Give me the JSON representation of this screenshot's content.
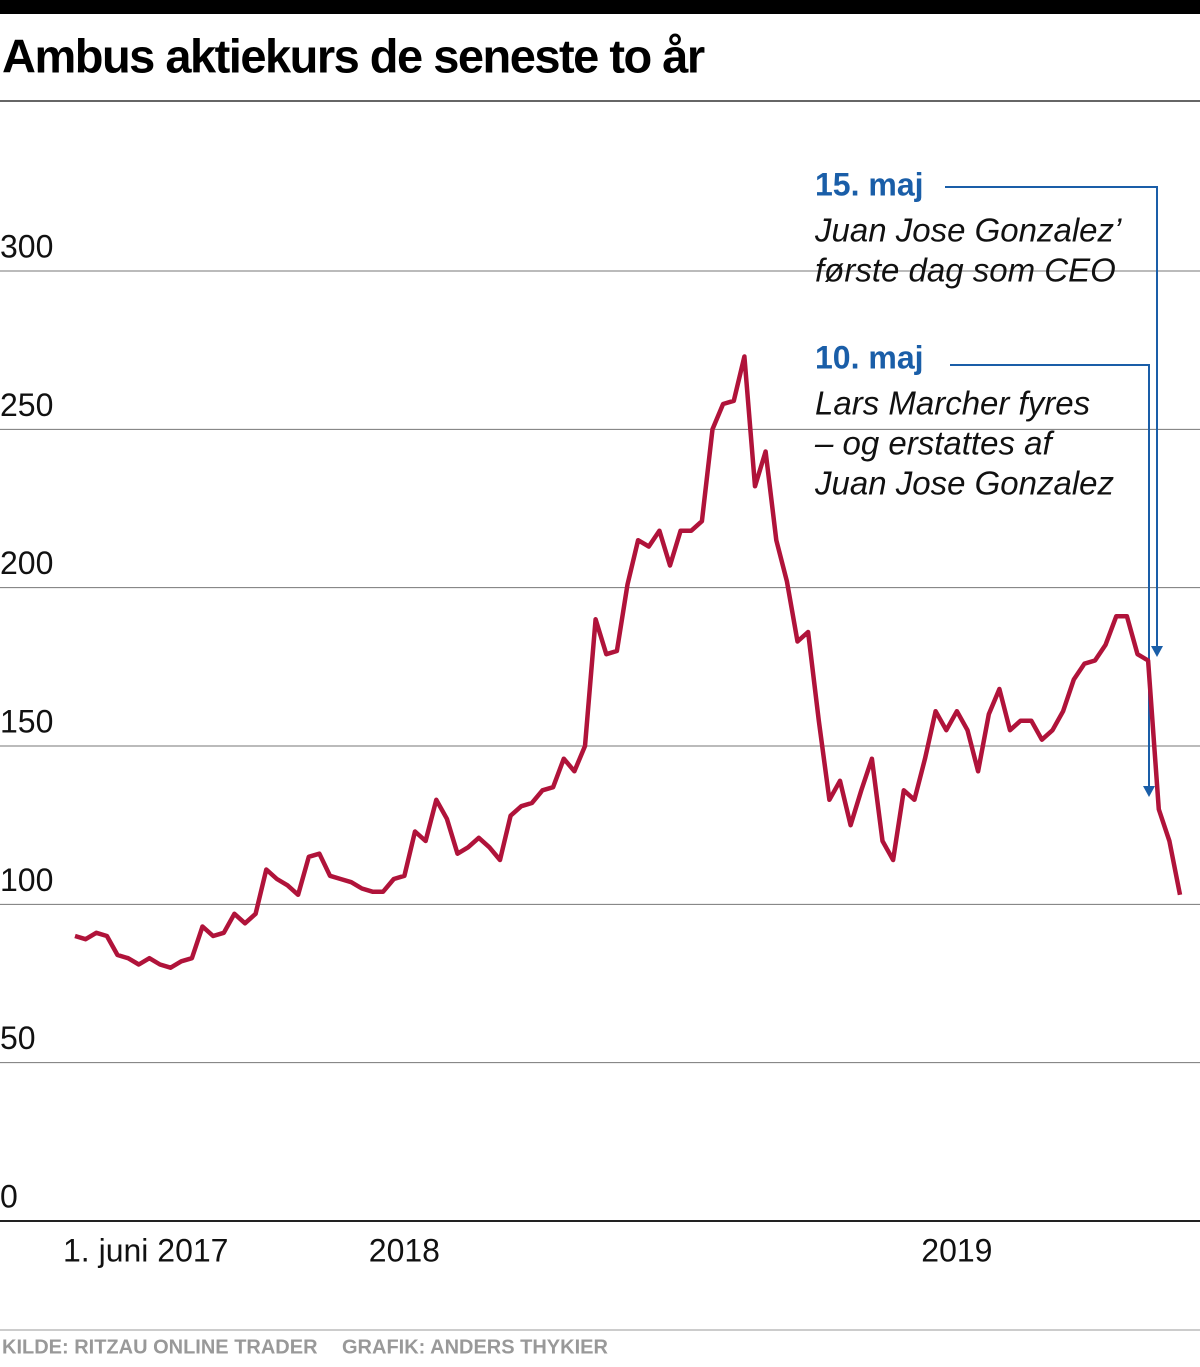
{
  "chart_data": {
    "type": "line",
    "title": "Ambus aktiekurs de seneste to år",
    "categories": [
      "1. juni 2017",
      null,
      null,
      null,
      null,
      null,
      null,
      null,
      null,
      null,
      null,
      null,
      null,
      null,
      null,
      null,
      null,
      null,
      null,
      null,
      null,
      null,
      null,
      null,
      null,
      null,
      null,
      null,
      null,
      null,
      null,
      "2018",
      null,
      null,
      null,
      null,
      null,
      null,
      null,
      null,
      null,
      null,
      null,
      null,
      null,
      null,
      null,
      null,
      null,
      null,
      null,
      null,
      null,
      null,
      null,
      null,
      null,
      null,
      null,
      null,
      null,
      null,
      null,
      null,
      null,
      null,
      null,
      null,
      null,
      null,
      null,
      null,
      null,
      null,
      null,
      null,
      null,
      null,
      null,
      null,
      null,
      null,
      null,
      "2019",
      null,
      null,
      null,
      null,
      null,
      null,
      null,
      null,
      null,
      null,
      null,
      null,
      null,
      null,
      null,
      null,
      null,
      null,
      null,
      null,
      null
    ],
    "series": [
      {
        "color": "#b0133a",
        "values": [
          90,
          89,
          91,
          90,
          84,
          83,
          81,
          83,
          81,
          80,
          82,
          83,
          93,
          90,
          91,
          97,
          94,
          97,
          111,
          108,
          106,
          103,
          115,
          116,
          109,
          108,
          107,
          105,
          104,
          104,
          108,
          109,
          123,
          120,
          133,
          127,
          116,
          118,
          121,
          118,
          114,
          128,
          131,
          132,
          136,
          137,
          146,
          142,
          150,
          190,
          179,
          180,
          201,
          215,
          213,
          218,
          207,
          218,
          218,
          221,
          250,
          258,
          259,
          273,
          232,
          243,
          215,
          202,
          183,
          186,
          158,
          133,
          139,
          125,
          136,
          146,
          120,
          114,
          136,
          133,
          146,
          161,
          155,
          161,
          155,
          142,
          160,
          168,
          155,
          158,
          158,
          152,
          155,
          161,
          171,
          176,
          177,
          182,
          191,
          191,
          179,
          177,
          130,
          120,
          103
        ]
      }
    ],
    "ylim": [
      0,
      300
    ],
    "yticks": [
      0,
      50,
      100,
      150,
      200,
      250,
      300
    ],
    "grid": true,
    "annotations": [
      {
        "title": "15. maj",
        "lines": [
          "Juan Jose Gonzalez’",
          "første dag som CEO"
        ]
      },
      {
        "title": "10. maj",
        "lines": [
          "Lars Marcher fyres",
          "– og erstattes af",
          "Juan Jose Gonzalez"
        ]
      }
    ],
    "source": "KILDE: RITZAU ONLINE TRADER",
    "credit": "GRAFIK: ANDERS THYKIER"
  }
}
